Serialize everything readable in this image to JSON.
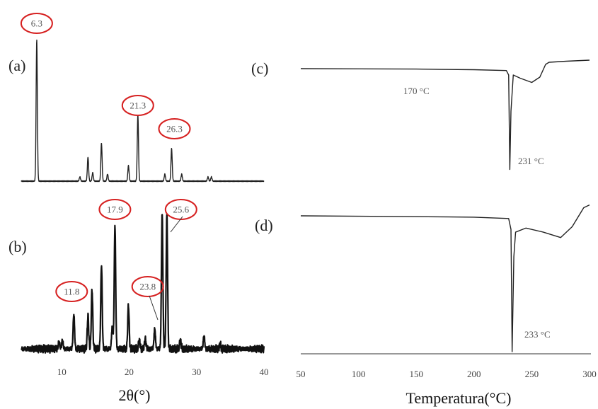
{
  "chart_data": [
    {
      "type": "line",
      "panels": [
        "(a)",
        "(b)"
      ],
      "xlabel": "2θ(°)",
      "xlim": [
        4,
        40
      ],
      "xticks": [
        10,
        20,
        30,
        40
      ],
      "series": [
        {
          "label": "(a)",
          "peaks": [
            {
              "x": 6.3,
              "h": 1.0
            },
            {
              "x": 12.7,
              "h": 0.03
            },
            {
              "x": 13.9,
              "h": 0.17
            },
            {
              "x": 14.6,
              "h": 0.06
            },
            {
              "x": 15.9,
              "h": 0.27
            },
            {
              "x": 16.8,
              "h": 0.05
            },
            {
              "x": 19.9,
              "h": 0.11
            },
            {
              "x": 21.3,
              "h": 0.47
            },
            {
              "x": 25.3,
              "h": 0.05
            },
            {
              "x": 26.3,
              "h": 0.23
            },
            {
              "x": 27.8,
              "h": 0.05
            },
            {
              "x": 31.7,
              "h": 0.03
            },
            {
              "x": 32.2,
              "h": 0.03
            }
          ],
          "annotations": [
            {
              "x": 6.3,
              "text": "6.3"
            },
            {
              "x": 21.3,
              "text": "21.3"
            },
            {
              "x": 26.3,
              "text": "26.3"
            }
          ]
        },
        {
          "label": "(b)",
          "peaks": [
            {
              "x": 9.6,
              "h": 0.05
            },
            {
              "x": 10.1,
              "h": 0.06
            },
            {
              "x": 11.8,
              "h": 0.24
            },
            {
              "x": 13.9,
              "h": 0.23
            },
            {
              "x": 14.5,
              "h": 0.41
            },
            {
              "x": 15.9,
              "h": 0.58
            },
            {
              "x": 17.5,
              "h": 0.15
            },
            {
              "x": 17.9,
              "h": 0.85
            },
            {
              "x": 19.9,
              "h": 0.3
            },
            {
              "x": 21.5,
              "h": 0.06
            },
            {
              "x": 22.4,
              "h": 0.07
            },
            {
              "x": 23.8,
              "h": 0.14
            },
            {
              "x": 24.9,
              "h": 0.93
            },
            {
              "x": 25.6,
              "h": 0.92
            },
            {
              "x": 27.6,
              "h": 0.06
            },
            {
              "x": 31.1,
              "h": 0.09
            },
            {
              "x": 33.5,
              "h": 0.03
            }
          ],
          "annotations": [
            {
              "x": 11.8,
              "text": "11.8"
            },
            {
              "x": 17.9,
              "text": "17.9"
            },
            {
              "x": 23.8,
              "text": "23.8"
            },
            {
              "x": 25.6,
              "text": "25.6"
            }
          ]
        }
      ]
    },
    {
      "type": "line",
      "panels": [
        "(c)",
        "(d)"
      ],
      "xlabel": "Temperatura(°C)",
      "xlim": [
        50,
        300
      ],
      "xticks": [
        50,
        100,
        150,
        200,
        250,
        300
      ],
      "series": [
        {
          "label": "(c)",
          "points": [
            [
              50,
              0
            ],
            [
              100,
              0.2
            ],
            [
              150,
              0.4
            ],
            [
              170,
              0.7
            ],
            [
              200,
              1.0
            ],
            [
              228,
              1.8
            ],
            [
              230,
              6
            ],
            [
              231,
              95
            ],
            [
              232,
              40
            ],
            [
              234,
              6
            ],
            [
              240,
              9
            ],
            [
              250,
              13
            ],
            [
              257,
              8
            ],
            [
              262,
              -4
            ],
            [
              265,
              -6
            ],
            [
              280,
              -7
            ],
            [
              300,
              -8
            ]
          ],
          "annotations": [
            {
              "x": 170,
              "text": "170 °C"
            },
            {
              "x": 231,
              "text": "231 °C"
            }
          ]
        },
        {
          "label": "(d)",
          "points": [
            [
              50,
              0
            ],
            [
              100,
              0.3
            ],
            [
              150,
              0.6
            ],
            [
              200,
              1.0
            ],
            [
              230,
              2
            ],
            [
              232,
              10
            ],
            [
              233,
              100
            ],
            [
              234.5,
              30
            ],
            [
              236,
              12
            ],
            [
              245,
              9
            ],
            [
              260,
              12
            ],
            [
              275,
              16
            ],
            [
              285,
              8
            ],
            [
              295,
              -6
            ],
            [
              300,
              -8
            ]
          ],
          "annotations": [
            {
              "x": 233,
              "text": "233 °C"
            }
          ]
        }
      ]
    }
  ]
}
